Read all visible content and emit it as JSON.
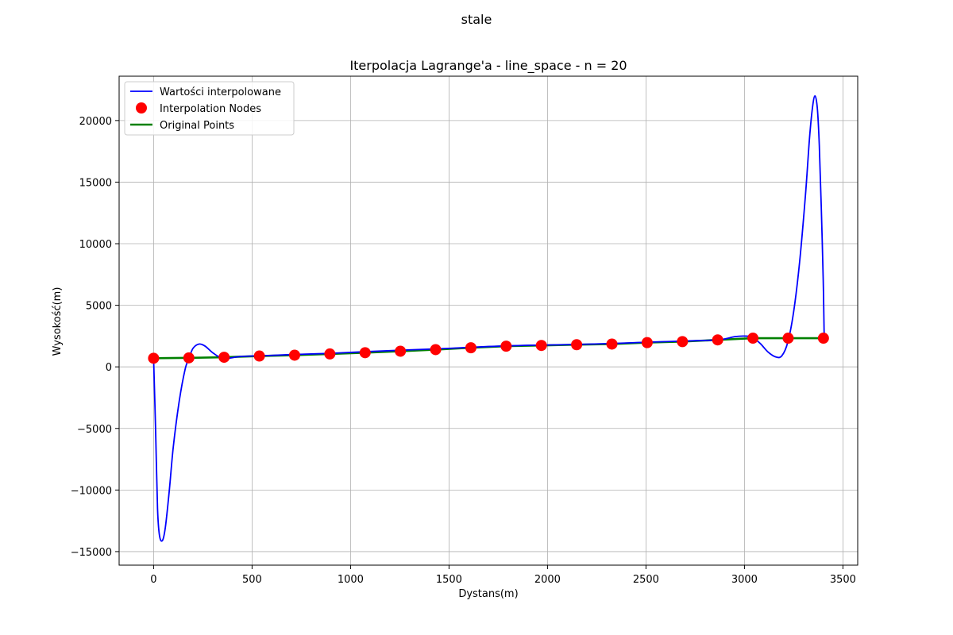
{
  "figure": {
    "suptitle": "stale"
  },
  "chart_data": {
    "type": "line",
    "title": "Iterpolacja Lagrange'a - line_space - n = 20",
    "xlabel": "Dystans(m)",
    "ylabel": "Wysokość(m)",
    "xlim": [
      -175,
      3575
    ],
    "ylim": [
      -16100,
      23600
    ],
    "xticks": [
      0,
      500,
      1000,
      1500,
      2000,
      2500,
      3000,
      3500
    ],
    "xtick_labels": [
      "0",
      "500",
      "1000",
      "1500",
      "2000",
      "2500",
      "3000",
      "3500"
    ],
    "yticks": [
      -15000,
      -10000,
      -5000,
      0,
      5000,
      10000,
      15000,
      20000
    ],
    "ytick_labels": [
      "−15000",
      "−10000",
      "−5000",
      "0",
      "5000",
      "10000",
      "15000",
      "20000"
    ],
    "grid": true,
    "legend_position": "top-left",
    "series": [
      {
        "name": "Wartości interpolowane",
        "style": "line",
        "color": "#0000ff",
        "x": [
          0,
          10,
          20,
          30,
          45,
          60,
          80,
          100,
          130,
          160,
          180,
          200,
          230,
          260,
          300,
          340,
          380,
          420,
          450,
          500,
          550,
          700,
          900,
          1100,
          1300,
          1500,
          1700,
          1900,
          2100,
          2300,
          2500,
          2700,
          2870,
          2950,
          3000,
          3040,
          3080,
          3120,
          3160,
          3190,
          3220,
          3250,
          3280,
          3310,
          3330,
          3345,
          3358,
          3370,
          3380,
          3390,
          3400,
          3405
        ],
        "y": [
          700,
          -5000,
          -11500,
          -13700,
          -14100,
          -13000,
          -10000,
          -6500,
          -2800,
          -200,
          700,
          1500,
          1850,
          1700,
          1150,
          750,
          700,
          800,
          850,
          880,
          900,
          1000,
          1100,
          1250,
          1380,
          1500,
          1650,
          1750,
          1800,
          1880,
          2000,
          2100,
          2200,
          2450,
          2500,
          2400,
          1900,
          1200,
          800,
          900,
          2000,
          4500,
          8500,
          14000,
          18500,
          21000,
          22000,
          21000,
          18000,
          13000,
          7000,
          2300
        ]
      },
      {
        "name": "Interpolation Nodes",
        "style": "markers",
        "color": "#ff0000",
        "x": [
          0,
          179,
          358,
          537,
          716,
          895,
          1074,
          1253,
          1432,
          1611,
          1790,
          1969,
          2148,
          2327,
          2506,
          2685,
          2864,
          3043,
          3222,
          3401
        ],
        "y": [
          700,
          730,
          780,
          880,
          950,
          1050,
          1150,
          1270,
          1400,
          1550,
          1680,
          1740,
          1800,
          1850,
          1970,
          2050,
          2190,
          2330,
          2330,
          2330
        ]
      },
      {
        "name": "Original Points",
        "style": "line",
        "color": "#008000",
        "x": [
          0,
          179,
          358,
          537,
          716,
          895,
          1074,
          1253,
          1432,
          1611,
          1790,
          1969,
          2148,
          2327,
          2506,
          2685,
          2864,
          3043,
          3222,
          3401
        ],
        "y": [
          700,
          730,
          780,
          880,
          950,
          1050,
          1150,
          1270,
          1400,
          1550,
          1680,
          1740,
          1800,
          1850,
          1970,
          2050,
          2190,
          2330,
          2330,
          2330
        ]
      }
    ]
  }
}
